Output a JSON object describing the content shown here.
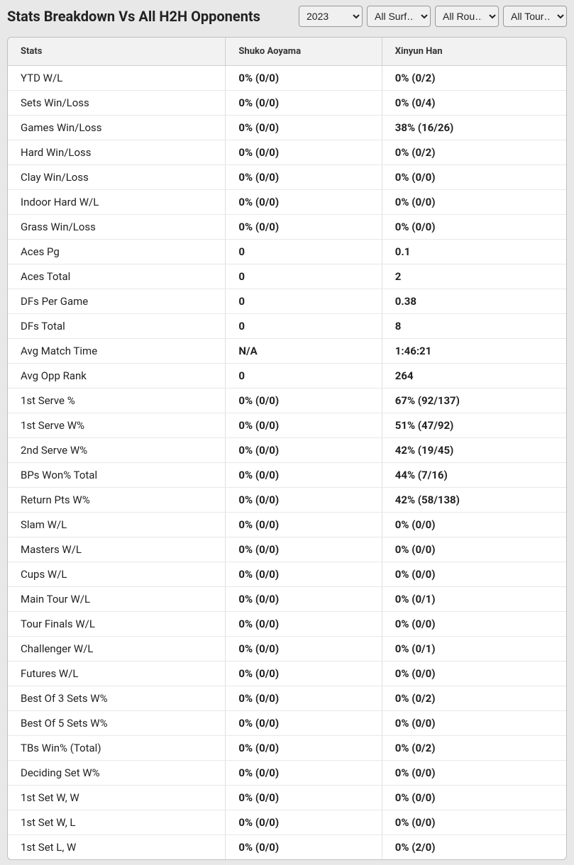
{
  "title": "Stats Breakdown Vs All H2H Opponents",
  "filters": {
    "year": {
      "selected": "2023",
      "options": [
        "2023"
      ]
    },
    "surface": {
      "selected": "All Surf…",
      "options": [
        "All Surf…"
      ]
    },
    "round": {
      "selected": "All Rou…",
      "options": [
        "All Rou…"
      ]
    },
    "tour": {
      "selected": "All Tour…",
      "options": [
        "All Tour…"
      ]
    }
  },
  "columns": {
    "stats": "Stats",
    "player1": "Shuko Aoyama",
    "player2": "Xinyun Han"
  },
  "rows": [
    {
      "label": "YTD W/L",
      "p1": "0% (0/0)",
      "p2": "0% (0/2)"
    },
    {
      "label": "Sets Win/Loss",
      "p1": "0% (0/0)",
      "p2": "0% (0/4)"
    },
    {
      "label": "Games Win/Loss",
      "p1": "0% (0/0)",
      "p2": "38% (16/26)"
    },
    {
      "label": "Hard Win/Loss",
      "p1": "0% (0/0)",
      "p2": "0% (0/2)"
    },
    {
      "label": "Clay Win/Loss",
      "p1": "0% (0/0)",
      "p2": "0% (0/0)"
    },
    {
      "label": "Indoor Hard W/L",
      "p1": "0% (0/0)",
      "p2": "0% (0/0)"
    },
    {
      "label": "Grass Win/Loss",
      "p1": "0% (0/0)",
      "p2": "0% (0/0)"
    },
    {
      "label": "Aces Pg",
      "p1": "0",
      "p2": "0.1"
    },
    {
      "label": "Aces Total",
      "p1": "0",
      "p2": "2"
    },
    {
      "label": "DFs Per Game",
      "p1": "0",
      "p2": "0.38"
    },
    {
      "label": "DFs Total",
      "p1": "0",
      "p2": "8"
    },
    {
      "label": "Avg Match Time",
      "p1": "N/A",
      "p2": "1:46:21"
    },
    {
      "label": "Avg Opp Rank",
      "p1": "0",
      "p2": "264"
    },
    {
      "label": "1st Serve %",
      "p1": "0% (0/0)",
      "p2": "67% (92/137)"
    },
    {
      "label": "1st Serve W%",
      "p1": "0% (0/0)",
      "p2": "51% (47/92)"
    },
    {
      "label": "2nd Serve W%",
      "p1": "0% (0/0)",
      "p2": "42% (19/45)"
    },
    {
      "label": "BPs Won% Total",
      "p1": "0% (0/0)",
      "p2": "44% (7/16)"
    },
    {
      "label": "Return Pts W%",
      "p1": "0% (0/0)",
      "p2": "42% (58/138)"
    },
    {
      "label": "Slam W/L",
      "p1": "0% (0/0)",
      "p2": "0% (0/0)"
    },
    {
      "label": "Masters W/L",
      "p1": "0% (0/0)",
      "p2": "0% (0/0)"
    },
    {
      "label": "Cups W/L",
      "p1": "0% (0/0)",
      "p2": "0% (0/0)"
    },
    {
      "label": "Main Tour W/L",
      "p1": "0% (0/0)",
      "p2": "0% (0/1)"
    },
    {
      "label": "Tour Finals W/L",
      "p1": "0% (0/0)",
      "p2": "0% (0/0)"
    },
    {
      "label": "Challenger W/L",
      "p1": "0% (0/0)",
      "p2": "0% (0/1)"
    },
    {
      "label": "Futures W/L",
      "p1": "0% (0/0)",
      "p2": "0% (0/0)"
    },
    {
      "label": "Best Of 3 Sets W%",
      "p1": "0% (0/0)",
      "p2": "0% (0/2)"
    },
    {
      "label": "Best Of 5 Sets W%",
      "p1": "0% (0/0)",
      "p2": "0% (0/0)"
    },
    {
      "label": "TBs Win% (Total)",
      "p1": "0% (0/0)",
      "p2": "0% (0/2)"
    },
    {
      "label": "Deciding Set W%",
      "p1": "0% (0/0)",
      "p2": "0% (0/0)"
    },
    {
      "label": "1st Set W, W",
      "p1": "0% (0/0)",
      "p2": "0% (0/0)"
    },
    {
      "label": "1st Set W, L",
      "p1": "0% (0/0)",
      "p2": "0% (0/0)"
    },
    {
      "label": "1st Set L, W",
      "p1": "0% (0/0)",
      "p2": "0% (2/0)"
    }
  ],
  "style": {
    "background_color": "#e8e8e8",
    "table_bg": "#ffffff",
    "header_bg": "#f2f2f2",
    "border_color": "#bfbfbf",
    "row_border": "#e8e8e8",
    "text_color": "#222222",
    "title_fontsize": 20,
    "header_fontsize": 13,
    "cell_fontsize": 15
  }
}
